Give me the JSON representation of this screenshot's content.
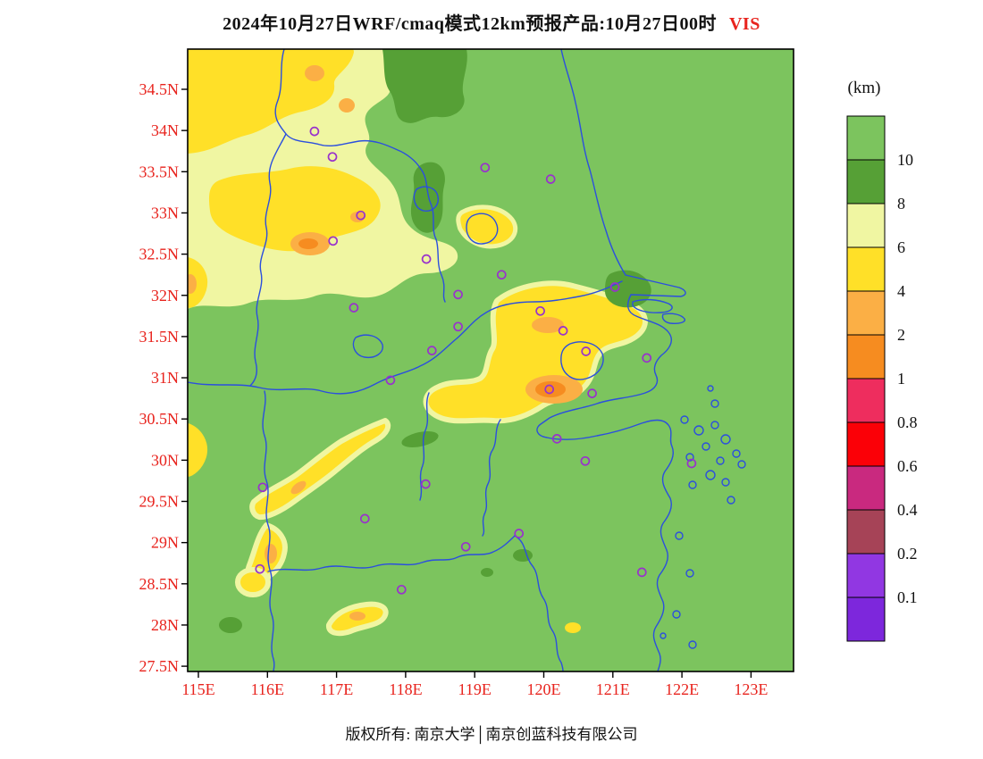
{
  "title": {
    "main": "2024年10月27日WRF/cmaq模式12km预报产品:10月27日00时",
    "variable": "VIS",
    "variable_color": "#E8231D"
  },
  "footer": {
    "text": "版权所有: 南京大学│南京创蓝科技有限公司"
  },
  "axes": {
    "lat_ticks": [
      "34.5N",
      "34N",
      "33.5N",
      "33N",
      "32.5N",
      "32N",
      "31.5N",
      "31N",
      "30.5N",
      "30N",
      "29.5N",
      "29N",
      "28.5N",
      "28N",
      "27.5N"
    ],
    "lon_ticks": [
      "115E",
      "116E",
      "117E",
      "118E",
      "119E",
      "120E",
      "121E",
      "122E",
      "123E"
    ],
    "label_color": "#E8231D"
  },
  "legend": {
    "unit": "(km)",
    "boundaries": [
      "10",
      "8",
      "6",
      "4",
      "2",
      "1",
      "0.8",
      "0.6",
      "0.4",
      "0.2",
      "0.1"
    ],
    "colors": [
      "#7CC45E",
      "#56A036",
      "#F0F6A2",
      "#FFE028",
      "#FBAF45",
      "#F68C20",
      "#EE2D5E",
      "#FB0007",
      "#C9297F",
      "#A64357",
      "#9137E2",
      "#7D27DC"
    ]
  },
  "chart_data": {
    "type": "heatmap",
    "title": "WRF/CMAQ 12km visibility (VIS) forecast for 2024-10-27 00时",
    "unit": "km",
    "lon_range": [
      114.84,
      123.6
    ],
    "lat_range": [
      27.43,
      35.0
    ],
    "lon_ticks_deg": [
      115,
      116,
      117,
      118,
      119,
      120,
      121,
      122,
      123
    ],
    "lat_ticks_deg": [
      34.5,
      34,
      33.5,
      33,
      32.5,
      32,
      31.5,
      31,
      30.5,
      30,
      29.5,
      29,
      28.5,
      28,
      27.5
    ],
    "levels_km": [
      0.1,
      0.2,
      0.4,
      0.6,
      0.8,
      1,
      2,
      4,
      6,
      8,
      10
    ],
    "palette_high_to_low": [
      "#7CC45E",
      "#56A036",
      "#F0F6A2",
      "#FFE028",
      "#FBAF45",
      "#F68C20",
      "#EE2D5E",
      "#FB0007",
      "#C9297F",
      "#A64357",
      "#9137E2",
      "#7D27DC"
    ],
    "background_value": "visibility > 10 km (green) over most of the domain and sea",
    "regions": [
      {
        "area": "northwest sector (~115-118.3E, 32.2-35N)",
        "visibility_km": "4-8 (yellow / pale yellow)",
        "cores_km": "1-4 (orange pockets)"
      },
      {
        "area": "Yangtze-delta band (~119.3-121.3E, 30.7-32.3N)",
        "visibility_km": "4-6 (yellow)",
        "cores_km": "1-4 (orange cores near 120E,30.9N)"
      },
      {
        "area": "southwest valley streaks (~115.8-118E, 27.9-30.3N)",
        "visibility_km": "4-6 with small 1-4 spots"
      },
      {
        "area": "scattered patches (top centre, 118.4E 33-33.6N, 121E 32.1N, small southern dots)",
        "visibility_km": "8-10 (dark green)"
      }
    ],
    "stations_lonlat": [
      [
        116.68,
        33.99
      ],
      [
        116.94,
        33.68
      ],
      [
        119.15,
        33.55
      ],
      [
        120.1,
        33.41
      ],
      [
        117.35,
        32.97
      ],
      [
        116.95,
        32.66
      ],
      [
        118.3,
        32.44
      ],
      [
        119.39,
        32.25
      ],
      [
        121.03,
        32.1
      ],
      [
        118.76,
        32.01
      ],
      [
        119.95,
        31.81
      ],
      [
        117.25,
        31.85
      ],
      [
        118.76,
        31.62
      ],
      [
        120.28,
        31.57
      ],
      [
        118.38,
        31.33
      ],
      [
        120.61,
        31.32
      ],
      [
        121.49,
        31.24
      ],
      [
        117.78,
        30.97
      ],
      [
        120.08,
        30.86
      ],
      [
        120.7,
        30.81
      ],
      [
        120.19,
        30.26
      ],
      [
        120.6,
        29.99
      ],
      [
        122.14,
        29.96
      ],
      [
        118.29,
        29.71
      ],
      [
        115.93,
        29.67
      ],
      [
        117.41,
        29.29
      ],
      [
        119.64,
        29.11
      ],
      [
        118.87,
        28.95
      ],
      [
        121.42,
        28.64
      ],
      [
        115.89,
        28.68
      ],
      [
        117.94,
        28.43
      ]
    ],
    "marker": {
      "shape": "circle-outline",
      "color": "#9932CC"
    },
    "boundary_line_color": "#2B4FDE"
  }
}
